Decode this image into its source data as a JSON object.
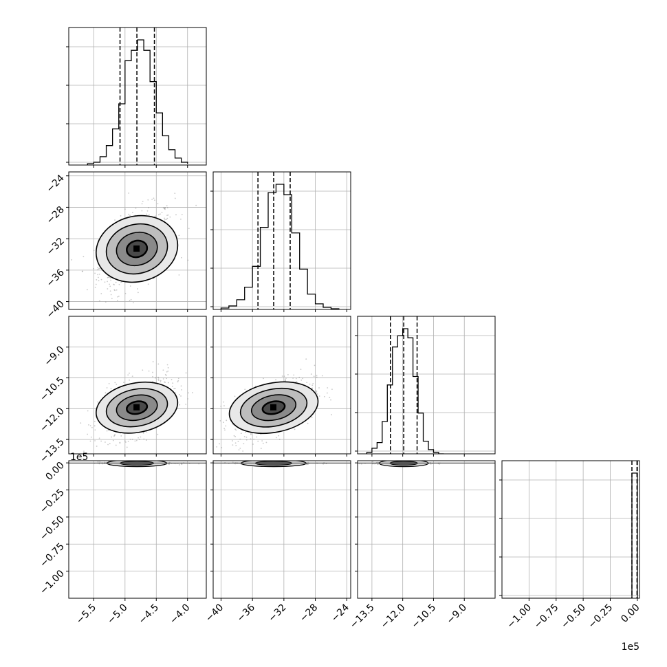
{
  "chart_data": {
    "type": "corner",
    "grid": true,
    "params": [
      {
        "range": [
          -5.9,
          -3.7
        ],
        "ticks": [
          -5.5,
          -5.0,
          -4.5,
          -4.0
        ],
        "tick_labels": [
          "−5.5",
          "−5.0",
          "−4.5",
          "−4.0"
        ],
        "quantiles": [
          -5.08,
          -4.81,
          -4.53
        ],
        "scale_label": ""
      },
      {
        "range": [
          -41.0,
          -23.5
        ],
        "ticks": [
          -40,
          -36,
          -32,
          -28,
          -24
        ],
        "tick_labels": [
          "−40",
          "−36",
          "−32",
          "−28",
          "−24"
        ],
        "quantiles": [
          -35.3,
          -33.3,
          -31.2
        ],
        "scale_label": ""
      },
      {
        "range": [
          -14.2,
          -7.5
        ],
        "ticks": [
          -13.5,
          -12.0,
          -10.5,
          -9.0
        ],
        "tick_labels": [
          "−13.5",
          "−12.0",
          "−10.5",
          "−9.0"
        ],
        "quantiles": [
          -12.6,
          -11.95,
          -11.3
        ],
        "scale_label": ""
      },
      {
        "range": [
          -1.25,
          0.02
        ],
        "ticks": [
          -1.0,
          -0.75,
          -0.5,
          -0.25,
          0.0
        ],
        "tick_labels": [
          "−1.00",
          "−0.75",
          "−0.50",
          "−0.25",
          "0.00"
        ],
        "quantiles": [
          -0.05,
          -0.003,
          0.0
        ],
        "scale_label": "1e5"
      }
    ],
    "y_ticks": {
      "1": {
        "ticks": [
          -40,
          -36,
          -32,
          -28,
          -24
        ],
        "tick_labels": [
          "−40",
          "−36",
          "−32",
          "−28",
          "−24"
        ]
      },
      "2": {
        "ticks": [
          -13.5,
          -12.0,
          -10.5,
          -9.0
        ],
        "tick_labels": [
          "−13.5",
          "−12.0",
          "−10.5",
          "−9.0"
        ]
      },
      "3": {
        "ticks": [
          -1.0,
          -0.75,
          -0.5,
          -0.25,
          0.0
        ],
        "tick_labels": [
          "−1.00",
          "−0.75",
          "−0.50",
          "−0.25",
          "0.00"
        ],
        "scale_label": "1e5"
      }
    },
    "histograms": [
      {
        "bins": [
          -5.6,
          -5.5,
          -5.4,
          -5.3,
          -5.2,
          -5.1,
          -5.0,
          -4.9,
          -4.8,
          -4.7,
          -4.6,
          -4.5,
          -4.4,
          -4.3,
          -4.2,
          -4.1,
          -4.0
        ],
        "counts": [
          2,
          4,
          12,
          28,
          52,
          88,
          150,
          165,
          180,
          165,
          120,
          75,
          42,
          22,
          10,
          4,
          2
        ]
      },
      {
        "bins": [
          -40,
          -39,
          -38,
          -37,
          -36,
          -35,
          -34,
          -33,
          -32,
          -31,
          -30,
          -29,
          -28,
          -27,
          -26,
          -25
        ],
        "counts": [
          2,
          5,
          14,
          32,
          62,
          118,
          168,
          180,
          165,
          110,
          58,
          22,
          8,
          3,
          1
        ]
      },
      {
        "bins": [
          -13.75,
          -13.5,
          -13.25,
          -13.0,
          -12.75,
          -12.5,
          -12.25,
          -12.0,
          -11.75,
          -11.5,
          -11.25,
          -11.0,
          -10.75,
          -10.5,
          -10.25,
          -10.0
        ],
        "counts": [
          2,
          8,
          16,
          46,
          98,
          152,
          168,
          178,
          165,
          110,
          58,
          18,
          6,
          2,
          0
        ]
      },
      {
        "bins": [
          -1.25,
          -0.05,
          0.0
        ],
        "counts": [
          0,
          180
        ]
      }
    ],
    "pairs": [
      {
        "row": 1,
        "col": 0,
        "center": [
          -4.81,
          -33.3
        ],
        "spread": [
          0.3,
          2.6
        ],
        "rho": 0.45,
        "n_points": 700
      },
      {
        "row": 2,
        "col": 0,
        "center": [
          -4.81,
          -11.95
        ],
        "spread": [
          0.3,
          0.75
        ],
        "rho": 0.45,
        "n_points": 700
      },
      {
        "row": 2,
        "col": 1,
        "center": [
          -33.3,
          -11.95
        ],
        "spread": [
          2.6,
          0.75
        ],
        "rho": 0.5,
        "n_points": 700
      },
      {
        "row": 3,
        "col": 0,
        "center": [
          -4.81,
          -0.003
        ],
        "spread": [
          0.3,
          0.006
        ],
        "rho": 0.0,
        "n_points": 300
      },
      {
        "row": 3,
        "col": 1,
        "center": [
          -33.3,
          -0.003
        ],
        "spread": [
          2.6,
          0.006
        ],
        "rho": 0.0,
        "n_points": 300
      },
      {
        "row": 3,
        "col": 2,
        "center": [
          -11.95,
          -0.003
        ],
        "spread": [
          0.75,
          0.006
        ],
        "rho": 0.0,
        "n_points": 300
      }
    ]
  }
}
